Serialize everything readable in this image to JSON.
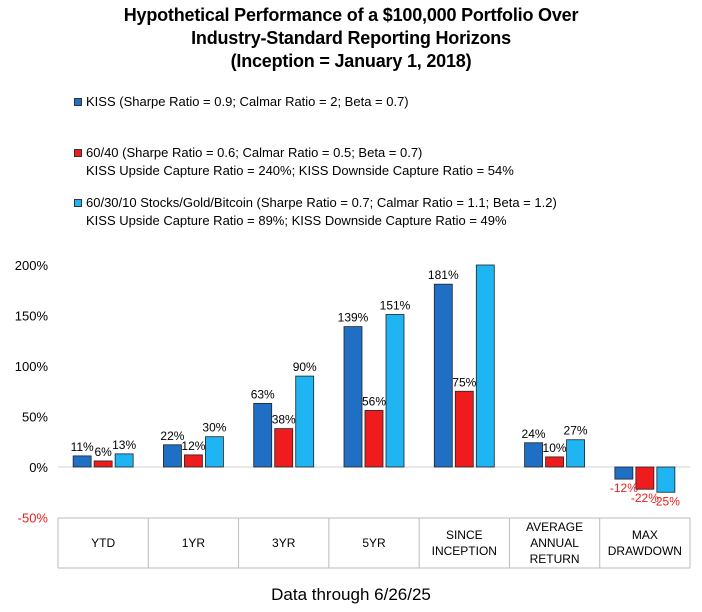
{
  "title_lines": [
    "Hypothetical Performance of a $100,000 Portfolio Over",
    "Industry-Standard Reporting Horizons",
    "(Inception = January 1, 2018)"
  ],
  "legend": [
    {
      "name": "KISS",
      "label": "KISS (Sharpe Ratio = 0.9; Calmar Ratio = 2; Beta = 0.7)",
      "sub": ""
    },
    {
      "name": "60/40",
      "label": "60/40 (Sharpe Ratio = 0.6; Calmar Ratio = 0.5; Beta = 0.7)",
      "sub": "KISS Upside Capture Ratio = 240%; KISS Downside Capture Ratio = 54%"
    },
    {
      "name": "60/30/10 Stocks/Gold/Bitcoin",
      "label": "60/30/10 Stocks/Gold/Bitcoin (Sharpe Ratio = 0.7; Calmar Ratio = 1.1; Beta = 1.2)",
      "sub": "KISS Upside Capture Ratio = 89%; KISS Downside Capture Ratio = 49%"
    }
  ],
  "footer": "Data through 6/26/25",
  "chart_data": {
    "type": "bar",
    "categories": [
      [
        "YTD"
      ],
      [
        "1YR"
      ],
      [
        "3YR"
      ],
      [
        "5YR"
      ],
      [
        "SINCE",
        "INCEPTION"
      ],
      [
        "AVERAGE",
        "ANNUAL",
        "RETURN"
      ],
      [
        "MAX",
        "DRAWDOWN"
      ]
    ],
    "series": [
      {
        "name": "KISS",
        "color": "#1f6fc5",
        "values": [
          11,
          22,
          63,
          139,
          181,
          24,
          -12
        ],
        "labels": [
          "11%",
          "22%",
          "63%",
          "139%",
          "181%",
          "24%",
          "-12%"
        ]
      },
      {
        "name": "60/40",
        "color": "#ee1c1c",
        "values": [
          6,
          12,
          38,
          56,
          75,
          10,
          -22
        ],
        "labels": [
          "6%",
          "12%",
          "38%",
          "56%",
          "75%",
          "10%",
          "-22%"
        ]
      },
      {
        "name": "60/30/10 Stocks/Gold/Bitcoin",
        "color": "#1fb4f2",
        "values": [
          13,
          30,
          90,
          151,
          200,
          27,
          -25
        ],
        "labels": [
          "13%",
          "30%",
          "90%",
          "151%",
          "",
          "27%",
          "-25%"
        ]
      }
    ],
    "y_ticks": [
      "200%",
      "150%",
      "100%",
      "50%",
      "0%",
      "-50%"
    ],
    "ylim": [
      -50,
      200
    ],
    "negative_label_color": "#ee1c1c",
    "grid": false
  }
}
